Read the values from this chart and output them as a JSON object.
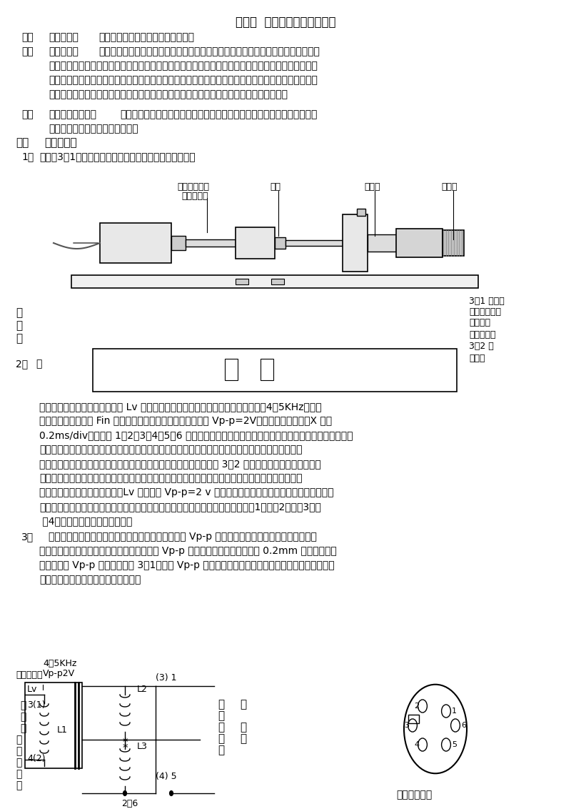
{
  "title": "实验十  差动变压器的性能实验",
  "bg_color": "#ffffff",
  "text_color": "#000000",
  "font_size_title": 12,
  "font_size_body": 9.5,
  "sections": [
    {
      "num": "一、",
      "bold_part": "实验目的：",
      "normal_part": "了解差动变压器的工作原理和特性。"
    },
    {
      "num": "二、",
      "bold_part": "基本原理：",
      "normal_part": "差动变压器由一只初级线圈和二只次线圈及一个铁芯组成，根据内外层排列不同，有"
    }
  ],
  "body_text_lines": [
    "二段式和三段式，本实验采用三段式结构。当传感器随着被测体移动时，由于初级线圈和次级线圈之间",
    "的互感发生变化促使次级线圈感应电势产生变化，一只次级感应电势增加，另一只感应电势则减少，将",
    "两只次级反向串接（同名端连接），就引出差动输出。其输出电势反映出被测体的移动量。"
  ],
  "section3_bold": "需用器件与单元：",
  "section3_normal": "差动变压器实验模板、测微头、双踪示波器、差动变压器、音频信号源、直",
  "section3_line2": "流电源（音频振荡器）、万用表。",
  "section4_bold": "实验步骤：",
  "step1": "根据图3－1，将差动变压器装在差动变压器实验模板上。",
  "diagram1_labels": {
    "label1": "差动变压器、",
    "label1b": "电容传感器",
    "label2": "模板",
    "label3": "测量架",
    "label4": "测微头"
  },
  "diagram1_side_left": [
    "图",
    "压",
    "安"
  ],
  "diagram1_step2": "2、  在",
  "diagram1_side_right": [
    "3－1 差动变",
    "器电容传感器",
    "装示意图",
    "模块上按图",
    "3－2 接",
    "线，音"
  ],
  "para2_lines": [
    "频振荡器信号必须从主控箱中的 Lv 端子输出，调节音频振荡器的频率，输出频率为4－5KHz（可用",
    "主控箱的频率表输入 Fin 来监测）。调节输出幅度为峰一峰值 Vp-p=2V（可用示波器监测：X 轴为",
    "0.2ms/div）。图中 1、2、3、4、5、6 为连接线插座的编号。接线时，航空插头上的号码与之对应。当",
    "然不看插孔号码，也可以判别初次级线圈及次级同名端。判别初次线图及次级线圈同中端方法如下：",
    "设任一线圈为初级线圈，并设另外两个线圈的任一端为同名端，按图 3－2 接线。当铁芯左、右移动时，",
    "观察示波器中显示的初级线圈波形、次级线圈波形，当次级波形输出幅度值变化很大，基本上能过零",
    "点，而且相应与初级线圈波形（Lv 音频信号 Vp-p=2 v 波形）比较能同相或反相变化，说明已连接的",
    "初、次级线圈及同名端是正确的，否则继续改变连接再判别直到正确为止。图中（1）、（2）、（3）、",
    " （4）为实验模块中的插孔编号。"
  ],
  "step3_lines": [
    "3、   旋动测微头，使示波器第二通道显示的波形峰－峰值 Vp-p 为最小，这时可以左右位移，假设其中",
    "一个方向为正位移，另一个方向位称为负，从 Vp-p 最小开始旋动测微头，每隔 0.2mm 从示波器上读",
    "出输出电压 Vp-p 值，填入下表 3－1，再人 Vp-p 最小处反向位移做实验，在实验过程中，注意左、",
    "右位移时，初、次级波形的相位关系。"
  ],
  "circuit_labels": {
    "freq": "4～5KHz",
    "amp": "Vp-p2V",
    "source": "音频振荡器",
    "lv": "Lv",
    "connect1": "接",
    "connect2": "第",
    "connect3": "一",
    "wave1": "示",
    "wave2": "波",
    "wave3": "器",
    "ch": "通",
    "dao": "道",
    "pin3": "3(1)",
    "pin4": "4(2)",
    "l1": "L1",
    "l2": "L2",
    "l3": "L3",
    "star1": "*",
    "star2": "*",
    "node1": "(3) 1",
    "node2": "(4) 5",
    "node3": "2、6",
    "connect_r1": "接",
    "connect_r2": "第",
    "connect_r3": "二",
    "wave_r1": "示",
    "wave_r2": "波",
    "wave_r3": "器",
    "ch_r": "通",
    "dao_r": "道",
    "socket_title": "插座管脚编号"
  }
}
